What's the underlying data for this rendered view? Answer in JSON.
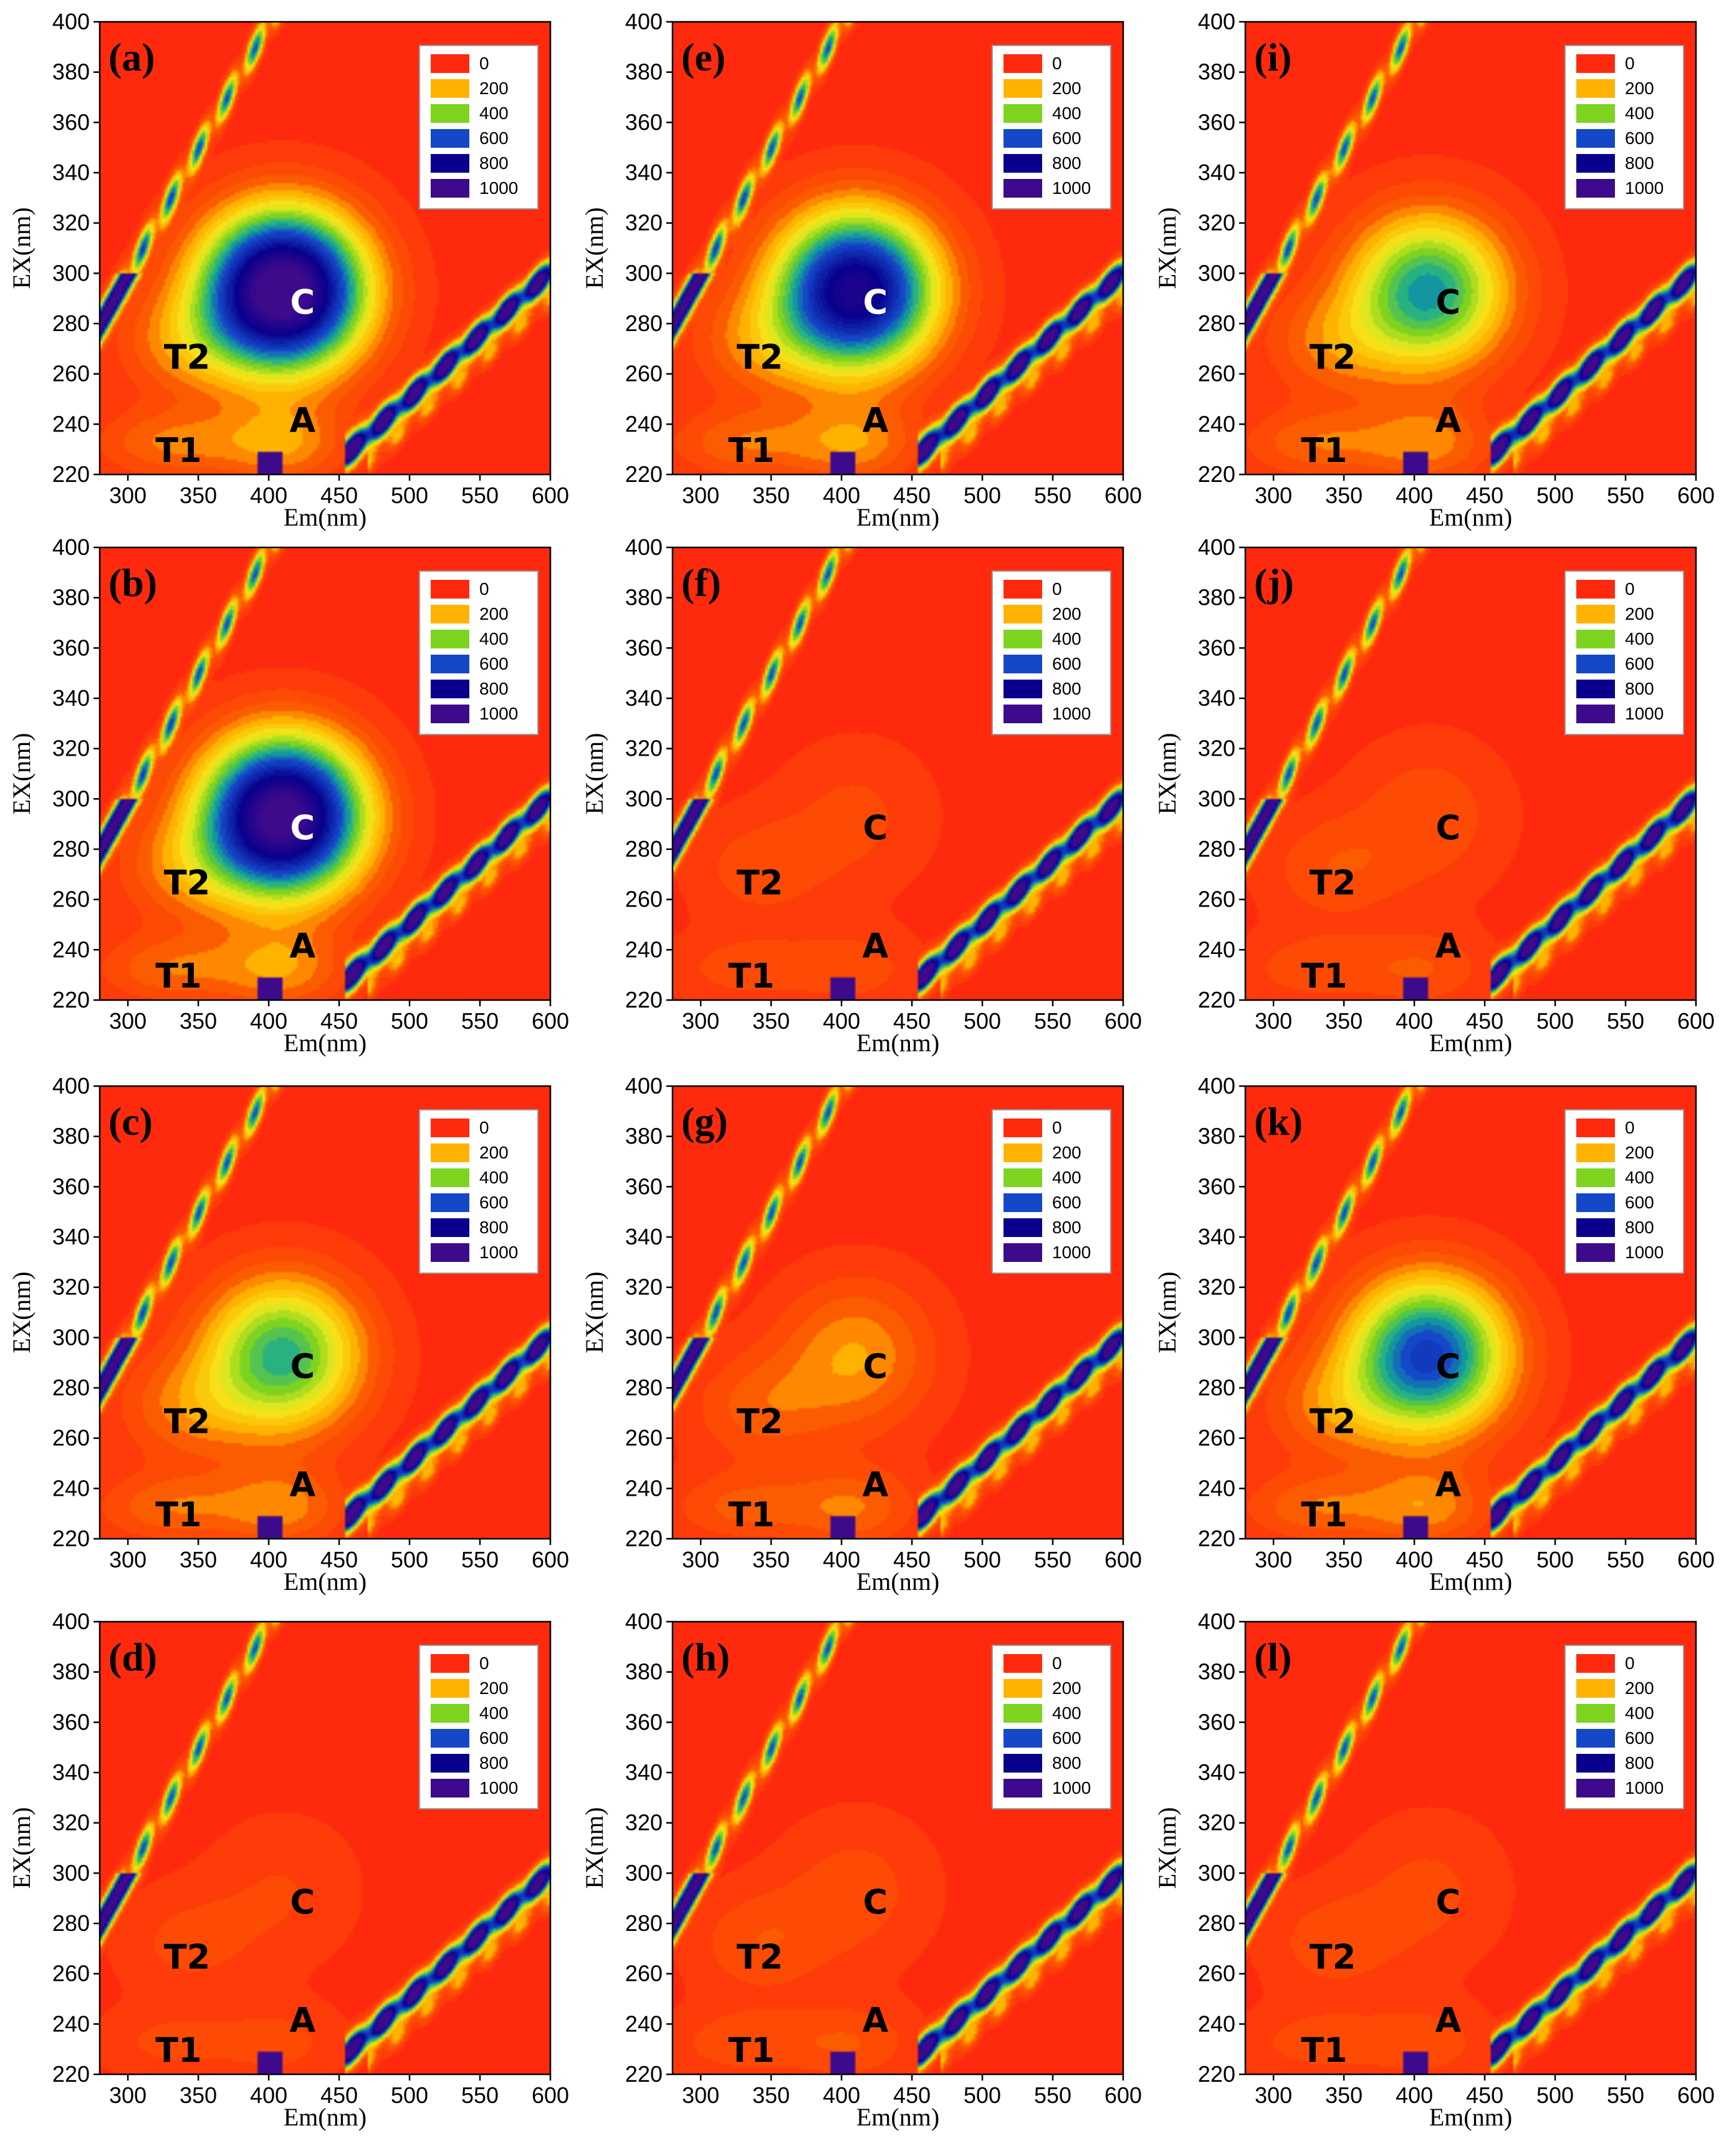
{
  "figure": {
    "axis_labels": {
      "x": "Em(nm)",
      "y": "EX(nm)"
    },
    "x_ticks": [
      "300",
      "350",
      "400",
      "450",
      "500",
      "550",
      "600"
    ],
    "y_ticks": [
      "220",
      "240",
      "260",
      "280",
      "300",
      "320",
      "340",
      "360",
      "380",
      "400"
    ],
    "legend": {
      "labels": [
        "0",
        "200",
        "400",
        "600",
        "800",
        "1000"
      ],
      "colors": [
        "#ff2a0e",
        "#ffb300",
        "#7ed321",
        "#1448c8",
        "#08008c",
        "#3d0a8c"
      ]
    },
    "peak_labels": {
      "c": "C",
      "a": "A",
      "t1": "T1",
      "t2": "T2"
    }
  },
  "chart_data": [
    {
      "type": "heatmap",
      "panel": "(a)",
      "title": "(a)",
      "xlabel": "Em(nm)",
      "ylabel": "EX(nm)",
      "xlim": [
        280,
        600
      ],
      "ylim": [
        220,
        400
      ],
      "peak_c_intensity": 1100,
      "peak_c_center": [
        410,
        293
      ],
      "peak_a_intensity": 170,
      "peak_t2_intensity": 140,
      "colorbar": [
        0,
        200,
        400,
        600,
        800,
        1000
      ]
    },
    {
      "type": "heatmap",
      "panel": "(b)",
      "title": "(b)",
      "xlabel": "Em(nm)",
      "ylabel": "EX(nm)",
      "xlim": [
        280,
        600
      ],
      "ylim": [
        220,
        400
      ],
      "peak_c_intensity": 1050,
      "peak_c_center": [
        410,
        293
      ],
      "peak_a_intensity": 160,
      "peak_t2_intensity": 130,
      "colorbar": [
        0,
        200,
        400,
        600,
        800,
        1000
      ]
    },
    {
      "type": "heatmap",
      "panel": "(c)",
      "title": "(c)",
      "xlabel": "Em(nm)",
      "ylabel": "EX(nm)",
      "xlim": [
        280,
        600
      ],
      "ylim": [
        220,
        400
      ],
      "peak_c_intensity": 480,
      "peak_c_center": [
        410,
        293
      ],
      "peak_a_intensity": 150,
      "peak_t2_intensity": 130,
      "colorbar": [
        0,
        200,
        400,
        600,
        800,
        1000
      ]
    },
    {
      "type": "heatmap",
      "panel": "(d)",
      "title": "(d)",
      "xlabel": "Em(nm)",
      "ylabel": "EX(nm)",
      "xlim": [
        280,
        600
      ],
      "ylim": [
        220,
        400
      ],
      "peak_c_intensity": 60,
      "peak_c_center": [
        410,
        293
      ],
      "peak_a_intensity": 70,
      "peak_t2_intensity": 70,
      "colorbar": [
        0,
        200,
        400,
        600,
        800,
        1000
      ]
    },
    {
      "type": "heatmap",
      "panel": "(e)",
      "title": "(e)",
      "xlabel": "Em(nm)",
      "ylabel": "EX(nm)",
      "xlim": [
        280,
        600
      ],
      "ylim": [
        220,
        400
      ],
      "peak_c_intensity": 880,
      "peak_c_center": [
        410,
        293
      ],
      "peak_a_intensity": 160,
      "peak_t2_intensity": 130,
      "colorbar": [
        0,
        200,
        400,
        600,
        800,
        1000
      ]
    },
    {
      "type": "heatmap",
      "panel": "(f)",
      "title": "(f)",
      "xlabel": "Em(nm)",
      "ylabel": "EX(nm)",
      "xlim": [
        280,
        600
      ],
      "ylim": [
        220,
        400
      ],
      "peak_c_intensity": 70,
      "peak_c_center": [
        410,
        293
      ],
      "peak_a_intensity": 80,
      "peak_t2_intensity": 80,
      "colorbar": [
        0,
        200,
        400,
        600,
        800,
        1000
      ]
    },
    {
      "type": "heatmap",
      "panel": "(g)",
      "title": "(g)",
      "xlabel": "Em(nm)",
      "ylabel": "EX(nm)",
      "xlim": [
        280,
        600
      ],
      "ylim": [
        220,
        400
      ],
      "peak_c_intensity": 180,
      "peak_c_center": [
        410,
        293
      ],
      "peak_a_intensity": 130,
      "peak_t2_intensity": 110,
      "colorbar": [
        0,
        200,
        400,
        600,
        800,
        1000
      ]
    },
    {
      "type": "heatmap",
      "panel": "(h)",
      "title": "(h)",
      "xlabel": "Em(nm)",
      "ylabel": "EX(nm)",
      "xlim": [
        280,
        600
      ],
      "ylim": [
        220,
        400
      ],
      "peak_c_intensity": 80,
      "peak_c_center": [
        410,
        293
      ],
      "peak_a_intensity": 90,
      "peak_t2_intensity": 90,
      "colorbar": [
        0,
        200,
        400,
        600,
        800,
        1000
      ]
    },
    {
      "type": "heatmap",
      "panel": "(i)",
      "title": "(i)",
      "xlabel": "Em(nm)",
      "ylabel": "EX(nm)",
      "xlim": [
        280,
        600
      ],
      "ylim": [
        220,
        400
      ],
      "peak_c_intensity": 520,
      "peak_c_center": [
        410,
        293
      ],
      "peak_a_intensity": 150,
      "peak_t2_intensity": 130,
      "colorbar": [
        0,
        200,
        400,
        600,
        800,
        1000
      ]
    },
    {
      "type": "heatmap",
      "panel": "(j)",
      "title": "(j)",
      "xlabel": "Em(nm)",
      "ylabel": "EX(nm)",
      "xlim": [
        280,
        600
      ],
      "ylim": [
        220,
        400
      ],
      "peak_c_intensity": 90,
      "peak_c_center": [
        410,
        293
      ],
      "peak_a_intensity": 90,
      "peak_t2_intensity": 90,
      "colorbar": [
        0,
        200,
        400,
        600,
        800,
        1000
      ]
    },
    {
      "type": "heatmap",
      "panel": "(k)",
      "title": "(k)",
      "xlabel": "Em(nm)",
      "ylabel": "EX(nm)",
      "xlim": [
        280,
        600
      ],
      "ylim": [
        220,
        400
      ],
      "peak_c_intensity": 640,
      "peak_c_center": [
        410,
        293
      ],
      "peak_a_intensity": 150,
      "peak_t2_intensity": 130,
      "colorbar": [
        0,
        200,
        400,
        600,
        800,
        1000
      ]
    },
    {
      "type": "heatmap",
      "panel": "(l)",
      "title": "(l)",
      "xlabel": "Em(nm)",
      "ylabel": "EX(nm)",
      "xlim": [
        280,
        600
      ],
      "ylim": [
        220,
        400
      ],
      "peak_c_intensity": 70,
      "peak_c_center": [
        410,
        293
      ],
      "peak_a_intensity": 80,
      "peak_t2_intensity": 80,
      "colorbar": [
        0,
        200,
        400,
        600,
        800,
        1000
      ]
    }
  ]
}
